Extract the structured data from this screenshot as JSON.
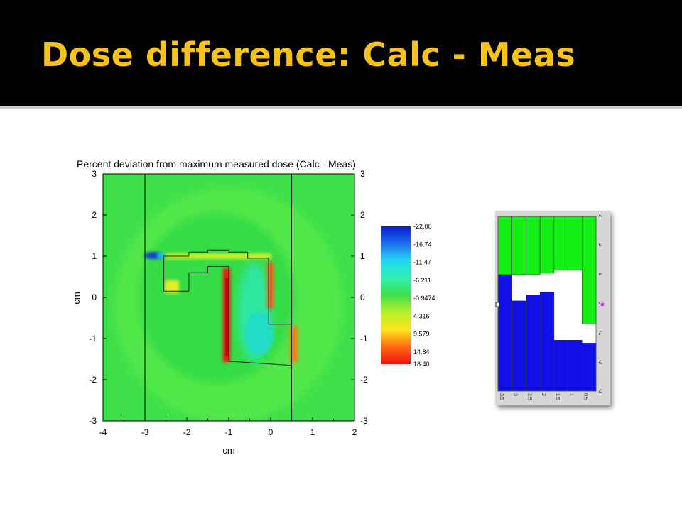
{
  "slide": {
    "title": "Dose difference: Calc - Meas",
    "colors": {
      "title_bar": "#000000",
      "title_text": "#f7c21a"
    }
  },
  "chart_data": [
    {
      "type": "heatmap",
      "title": "Percent deviation from maximum measured dose (Calc - Meas)",
      "xlabel": "cm",
      "ylabel": "cm",
      "xlim": [
        -4,
        2
      ],
      "ylim": [
        -3,
        3
      ],
      "x_ticks": [
        "-4",
        "-3",
        "-2",
        "-1",
        "0",
        "1",
        "2"
      ],
      "y_ticks": [
        "-3",
        "-2",
        "-1",
        "0",
        "1",
        "2",
        "3"
      ],
      "right_y_ticks": [
        "-3",
        "-2",
        "-1",
        "0",
        "1",
        "2",
        "3"
      ],
      "colorbar": {
        "min": -22.0,
        "max": 18.4,
        "labels": [
          "-22.00",
          "-16.74",
          "-11.47",
          "-6.211",
          "-0.9474",
          "4.316",
          "9.579",
          "14.84",
          "18.40"
        ],
        "values": [
          -22.0,
          -16.74,
          -11.47,
          -6.211,
          -0.9474,
          4.316,
          9.579,
          14.84,
          18.4
        ],
        "colors": [
          "#0a1ecc",
          "#1e6ef0",
          "#22d8f0",
          "#2ef0b0",
          "#3ee04a",
          "#b8f028",
          "#ffe41e",
          "#ff6a14",
          "#ee1010"
        ]
      },
      "background_value": -1.0,
      "field_edges_x": [
        -3,
        0.5
      ],
      "hotspots": [
        {
          "x": -1.0,
          "y": -0.5,
          "value": 18.0
        },
        {
          "x": 0.0,
          "y": 0.4,
          "value": 14.0
        },
        {
          "x": 0.55,
          "y": -1.1,
          "value": 12.0
        },
        {
          "x": -2.7,
          "y": 1.05,
          "value": -22.0
        },
        {
          "x": -0.35,
          "y": -0.6,
          "value": -8.0
        }
      ],
      "outline": [
        [
          -2.55,
          0.15
        ],
        [
          -2.55,
          1.0
        ],
        [
          -1.95,
          1.0
        ],
        [
          -1.95,
          1.1
        ],
        [
          -1.5,
          1.1
        ],
        [
          -1.5,
          1.15
        ],
        [
          -1.0,
          1.15
        ],
        [
          -1.0,
          1.1
        ],
        [
          -0.55,
          1.1
        ],
        [
          -0.55,
          0.95
        ],
        [
          -0.05,
          0.95
        ],
        [
          -0.05,
          -0.65
        ],
        [
          0.5,
          -0.65
        ],
        [
          0.5,
          -1.65
        ],
        [
          -1.0,
          -1.55
        ],
        [
          -1.0,
          0.75
        ],
        [
          -1.5,
          0.75
        ],
        [
          -1.5,
          0.6
        ],
        [
          -1.95,
          0.6
        ],
        [
          -1.95,
          0.15
        ],
        [
          -2.55,
          0.15
        ]
      ]
    },
    {
      "type": "bar",
      "description": "MLC leaf position thumbnail",
      "x_ticks": [
        "3.5",
        "3",
        "2.5",
        "2",
        "1.5",
        "1",
        "0.5"
      ],
      "y_ticks": [
        "-3",
        "-2",
        "-1",
        "0",
        "1",
        "2",
        "3"
      ],
      "xlim": [
        0,
        3.5
      ],
      "ylim": [
        -3,
        3
      ],
      "leaf_top": [
        1.0,
        0.1,
        0.3,
        0.4,
        -1.25,
        -1.25,
        -1.35
      ],
      "field_top": [
        1.0,
        1.0,
        1.0,
        1.05,
        1.15,
        1.15,
        -0.7
      ],
      "colors": {
        "upper": "#14f014",
        "lower": "#1010e6",
        "gap": "#ffffff"
      }
    }
  ]
}
